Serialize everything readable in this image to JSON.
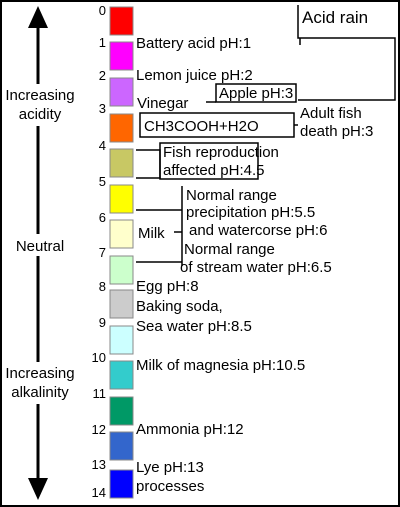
{
  "left_labels": {
    "acidity": [
      "Increasing",
      "acidity"
    ],
    "neutral": "Neutral",
    "alkalinity": [
      "Increasing",
      "alkalinity"
    ]
  },
  "scale": [
    "0",
    "1",
    "2",
    "3",
    "4",
    "5",
    "6",
    "7",
    "8",
    "9",
    "10",
    "11",
    "12",
    "13",
    "14"
  ],
  "swatches": [
    "#ff0000",
    "#ff00ff",
    "#cc66ff",
    "#ff6600",
    "#c8c864",
    "#ffff00",
    "#ffffcc",
    "#ccffcc",
    "#cccccc",
    "#ccffff",
    "#33cccc",
    "#009966",
    "#3366cc",
    "#0000ff"
  ],
  "acid_rain": "Acid rain",
  "items": {
    "battery_acid": "Battery acid pH:1",
    "lemon_juice": "Lemon juice pH:2",
    "vinegar": "Vinegar",
    "apple": "Apple pH:3",
    "formula": "CH3COOH+H2O",
    "adult_fish": [
      "Adult fish",
      "death pH:3"
    ],
    "fish_reproduction": [
      "Fish reproduction",
      "affected pH:4.5"
    ],
    "precipitation": [
      "Normal range",
      "precipitation pH:5.5"
    ],
    "watercourse": "and watercorse pH:6",
    "milk": "Milk",
    "stream_water": [
      "Normal range",
      "of stream water pH:6.5"
    ],
    "egg": "Egg pH:8",
    "baking_soda": [
      "Baking soda,",
      "Sea water pH:8.5"
    ],
    "milk_of_magnesia": "Milk of magnesia pH:10.5",
    "ammonia": "Ammonia pH:12",
    "lye": [
      "Lye pH:13",
      "processes"
    ]
  }
}
